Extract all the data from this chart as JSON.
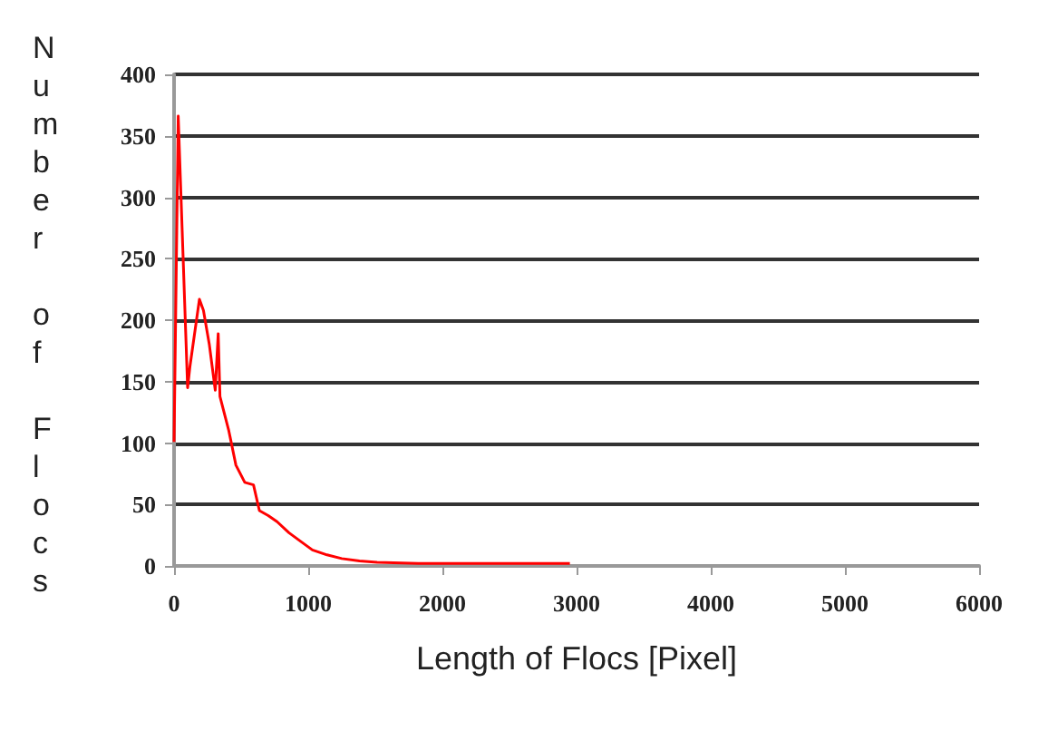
{
  "chart_data": {
    "type": "line",
    "xlabel": "Length of Flocs [Pixel]",
    "ylabel": "Number of Flocs",
    "series": [
      {
        "color": "#ff0000",
        "x": [
          0,
          31,
          101,
          118,
          189,
          219,
          263,
          307,
          329,
          342,
          408,
          461,
          527,
          592,
          636,
          702,
          768,
          856,
          943,
          1031,
          1140,
          1250,
          1382,
          1513,
          1820,
          2259,
          2950
        ],
        "values": [
          101,
          366,
          145,
          162,
          217,
          208,
          180,
          143,
          189,
          138,
          110,
          82,
          68,
          66,
          45,
          41,
          36,
          27,
          20,
          13,
          9,
          6,
          4,
          3,
          2,
          2,
          2
        ]
      }
    ],
    "xlim": [
      0,
      6000
    ],
    "xticks": [
      0,
      1000,
      2000,
      3000,
      4000,
      5000,
      6000
    ],
    "ylim": [
      0,
      400
    ],
    "yticks": [
      0,
      50,
      100,
      150,
      200,
      250,
      300,
      350,
      400
    ],
    "grid": "y",
    "marker": "none",
    "line_style": "solid"
  }
}
